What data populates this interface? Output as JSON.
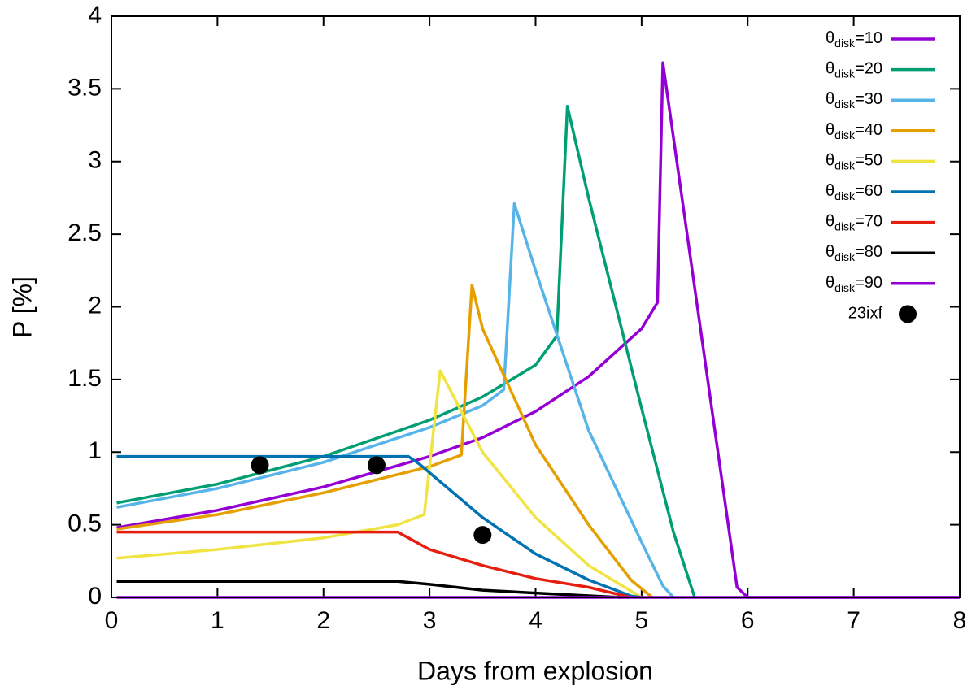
{
  "chart_data": {
    "type": "line",
    "xlabel": "Days from explosion",
    "ylabel": "P [%]",
    "xlim": [
      0,
      8
    ],
    "ylim": [
      0,
      4
    ],
    "xticks": [
      0,
      1,
      2,
      3,
      4,
      5,
      6,
      7,
      8
    ],
    "yticks": [
      0,
      0.5,
      1,
      1.5,
      2,
      2.5,
      3,
      3.5,
      4
    ],
    "legend": "upper-right",
    "series": [
      {
        "name": "θdisk=10",
        "color": "#9400d3",
        "mode": "lines",
        "x": [
          0.05,
          1,
          2,
          3,
          3.5,
          4,
          4.5,
          5,
          5.15,
          5.2,
          5.9,
          6,
          8
        ],
        "values": [
          0.48,
          0.6,
          0.76,
          0.97,
          1.1,
          1.28,
          1.52,
          1.85,
          2.03,
          3.68,
          0.07,
          0,
          0
        ]
      },
      {
        "name": "θdisk=20",
        "color": "#009e73",
        "mode": "lines",
        "x": [
          0.05,
          1,
          2,
          3,
          3.5,
          4,
          4.2,
          4.3,
          4.5,
          5,
          5.3,
          5.5
        ],
        "values": [
          0.65,
          0.78,
          0.97,
          1.22,
          1.38,
          1.6,
          1.8,
          3.38,
          2.75,
          1.3,
          0.45,
          0
        ]
      },
      {
        "name": "θdisk=30",
        "color": "#56b4e9",
        "mode": "lines",
        "x": [
          0.05,
          1,
          2,
          3,
          3.5,
          3.7,
          3.8,
          4,
          4.5,
          5,
          5.2,
          5.3
        ],
        "values": [
          0.62,
          0.75,
          0.93,
          1.17,
          1.32,
          1.43,
          2.71,
          2.25,
          1.15,
          0.38,
          0.08,
          0
        ]
      },
      {
        "name": "θdisk=40",
        "color": "#e69f00",
        "mode": "lines",
        "x": [
          0.05,
          1,
          2,
          3,
          3.3,
          3.4,
          3.5,
          4,
          4.5,
          4.9,
          5.1
        ],
        "values": [
          0.47,
          0.57,
          0.72,
          0.9,
          0.98,
          2.15,
          1.85,
          1.05,
          0.5,
          0.12,
          0
        ]
      },
      {
        "name": "θdisk=50",
        "color": "#f0e442",
        "mode": "lines",
        "x": [
          0.05,
          1,
          2,
          2.7,
          2.95,
          3.1,
          3.5,
          4,
          4.5,
          5
        ],
        "values": [
          0.27,
          0.33,
          0.41,
          0.5,
          0.57,
          1.56,
          1.0,
          0.55,
          0.22,
          0
        ]
      },
      {
        "name": "θdisk=60",
        "color": "#0072b2",
        "mode": "lines",
        "x": [
          0.05,
          2.8,
          2.9,
          3.5,
          4,
          4.5,
          4.9,
          5
        ],
        "values": [
          0.97,
          0.97,
          0.92,
          0.55,
          0.3,
          0.12,
          0.01,
          0
        ]
      },
      {
        "name": "θdisk=70",
        "color": "#e51e10",
        "mode": "lines",
        "x": [
          0.05,
          2.7,
          3,
          3.5,
          4,
          4.5,
          4.9
        ],
        "values": [
          0.45,
          0.45,
          0.33,
          0.22,
          0.13,
          0.07,
          0
        ]
      },
      {
        "name": "θdisk=80",
        "color": "#000000",
        "mode": "lines",
        "x": [
          0.05,
          2.7,
          3,
          3.5,
          4,
          4.8
        ],
        "values": [
          0.11,
          0.11,
          0.09,
          0.05,
          0.03,
          0
        ]
      },
      {
        "name": "θdisk=90",
        "color": "#9400d3",
        "mode": "lines",
        "x": [
          0.05,
          8
        ],
        "values": [
          0,
          0
        ]
      },
      {
        "name": "23ixf",
        "color": "#000000",
        "mode": "points",
        "x": [
          1.4,
          2.5,
          3.5
        ],
        "values": [
          0.91,
          0.91,
          0.43
        ]
      }
    ]
  }
}
